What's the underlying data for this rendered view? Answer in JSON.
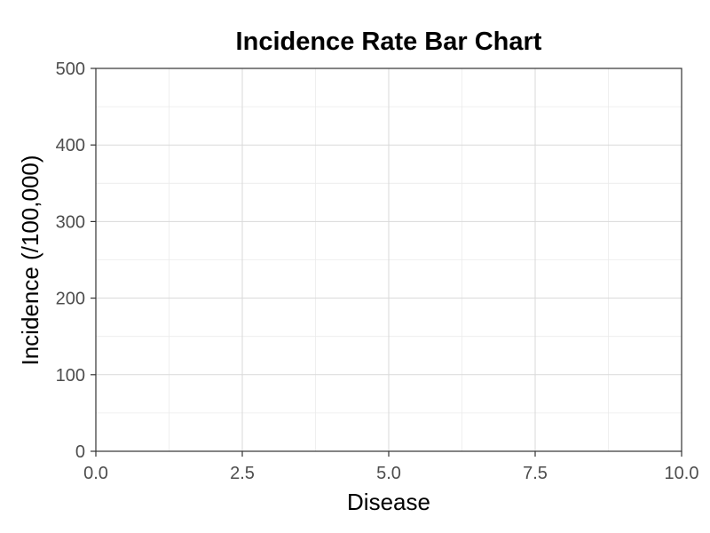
{
  "chart_data": {
    "type": "bar",
    "title": "Incidence Rate Bar Chart",
    "xlabel": "Disease",
    "ylabel": "Incidence (/100,000)",
    "xlim": [
      0,
      10
    ],
    "ylim": [
      0,
      500
    ],
    "x_ticks": [
      0,
      2.5,
      5,
      7.5,
      10
    ],
    "x_tick_labels": [
      "0.0",
      "2.5",
      "5.0",
      "7.5",
      "10.0"
    ],
    "y_ticks": [
      0,
      100,
      200,
      300,
      400,
      500
    ],
    "y_tick_labels": [
      "0",
      "100",
      "200",
      "300",
      "400",
      "500"
    ],
    "x_minor_ticks": [
      1.25,
      3.75,
      6.25,
      8.75
    ],
    "y_minor_ticks": [
      50,
      150,
      250,
      350,
      450
    ],
    "grid": true,
    "legend": "none",
    "categories": [],
    "values": [],
    "colors": {
      "background": "#ffffff",
      "panel_border": "#333333",
      "grid_major": "#d9d9d9",
      "grid_minor": "#ebebeb",
      "tick_text": "#4d4d4d",
      "axis_line": "#333333"
    }
  }
}
